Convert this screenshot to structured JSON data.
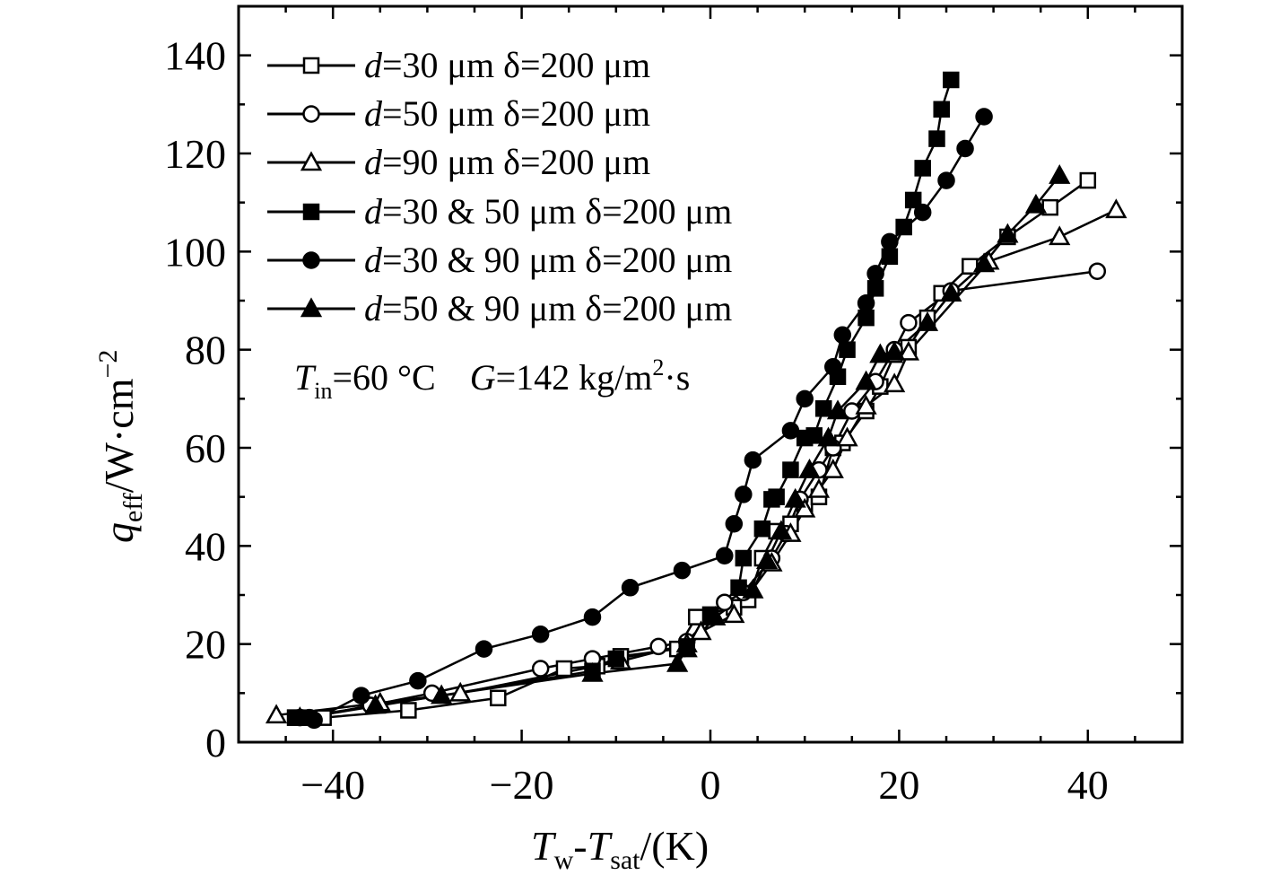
{
  "chart_data": {
    "type": "line",
    "x_label": {
      "symbol": "T",
      "sub1": "w",
      "dash": "-",
      "symbol2": "T",
      "sub2": "sat",
      "unit": "/(K)"
    },
    "y_label": {
      "symbol": "q",
      "sub": "eff",
      "unit": "/W·cm",
      "sup": "−2"
    },
    "xlim": [
      -50,
      50
    ],
    "ylim": [
      0,
      150
    ],
    "x_ticks": [
      -40,
      -20,
      0,
      20,
      40
    ],
    "x_tick_labels": [
      "−40",
      "−20",
      "0",
      "20",
      "40"
    ],
    "y_ticks": [
      0,
      20,
      40,
      60,
      80,
      100,
      120,
      140
    ],
    "y_tick_labels": [
      "0",
      "20",
      "40",
      "60",
      "80",
      "100",
      "120",
      "140"
    ],
    "legend_position": "top-left",
    "annotation": {
      "T": "T",
      "in": "in",
      "tval": "=60 °C",
      "G": "G",
      "gval": "=142 kg/m",
      "sq": "2",
      "tail": "·s"
    },
    "series": [
      {
        "label_italic": "d",
        "label_rest": "=30 μm δ=200 μm",
        "marker": "square",
        "filled": false,
        "x": [
          -44,
          -41,
          -32,
          -22.5,
          -15.5,
          -12,
          -9.5,
          -3.5,
          -1.5,
          2.5,
          4,
          5.5,
          7,
          8.5,
          10,
          11.5,
          13,
          14,
          16.5,
          18,
          19.5,
          21,
          23,
          24.5,
          27.5,
          31.5,
          36,
          40
        ],
        "y": [
          5,
          5,
          6.5,
          9,
          15,
          15.5,
          17.5,
          19,
          25.5,
          27.5,
          29,
          37.5,
          43,
          44.5,
          48.5,
          50,
          60,
          61,
          67.5,
          72.5,
          79,
          80.5,
          86.5,
          91.5,
          97,
          103,
          109,
          114.5
        ]
      },
      {
        "label_italic": "d",
        "label_rest": "=50 μm δ=200 μm",
        "marker": "circle",
        "filled": false,
        "x": [
          -43.5,
          -42.5,
          -36,
          -29.5,
          -18,
          -12.5,
          -5.5,
          -2.5,
          1.5,
          3.5,
          6.5,
          8,
          9.5,
          11.5,
          13,
          15,
          17.5,
          19.5,
          21,
          25.5,
          41
        ],
        "y": [
          5,
          5,
          7.5,
          10,
          15,
          17,
          19.5,
          20.5,
          28.5,
          30.5,
          37.5,
          42.5,
          49.5,
          55.5,
          60,
          67.5,
          73.5,
          80,
          85.5,
          92,
          96
        ]
      },
      {
        "label_italic": "d",
        "label_rest": "=90 μm δ=200 μm",
        "marker": "triangle",
        "filled": false,
        "x": [
          -46,
          -35,
          -26.5,
          -9.5,
          -2.5,
          -1,
          2.5,
          6.5,
          8.5,
          10,
          11.5,
          13,
          14.5,
          16.5,
          19.5,
          21,
          29.5,
          37,
          43
        ],
        "y": [
          5.5,
          8,
          10,
          16.5,
          20,
          22.5,
          26,
          36.5,
          42.5,
          47.5,
          51.5,
          55.5,
          62,
          68.5,
          73,
          79.5,
          98,
          103,
          108.5
        ]
      },
      {
        "label_italic": "d",
        "label_rest": "=30 & 50 μm δ=200 μm",
        "marker": "square",
        "filled": true,
        "x": [
          -44,
          -43,
          -12.5,
          -10,
          -2.5,
          0,
          3,
          3.5,
          5.5,
          6.5,
          7,
          8.5,
          10,
          11,
          12,
          13.5,
          14.5,
          16.5,
          17.5,
          19,
          20.5,
          21.5,
          22.5,
          24,
          24.5,
          25.5
        ],
        "y": [
          5,
          5,
          14.5,
          17,
          19.5,
          26,
          31.5,
          37.5,
          43.5,
          49.5,
          50,
          55.5,
          62,
          62.5,
          68,
          74.5,
          80,
          86.5,
          92.5,
          99,
          105,
          110.5,
          117,
          123,
          129,
          135
        ]
      },
      {
        "label_italic": "d",
        "label_rest": "=30 & 90 μm δ=200 μm",
        "marker": "circle",
        "filled": true,
        "x": [
          -42,
          -37,
          -31,
          -24,
          -18,
          -12.5,
          -8.5,
          -3,
          1.5,
          2.5,
          3.5,
          4.5,
          8.5,
          10,
          13,
          14,
          16.5,
          17.5,
          19,
          22.5,
          25,
          27,
          29
        ],
        "y": [
          4.5,
          9.5,
          12.5,
          19,
          22,
          25.5,
          31.5,
          35,
          38,
          44.5,
          50.5,
          57.5,
          63.5,
          70,
          76.5,
          83,
          89.5,
          95.5,
          102,
          108,
          114.5,
          121,
          127.5
        ]
      },
      {
        "label_italic": "d",
        "label_rest": "=50 & 90 μm δ=200 μm",
        "marker": "triangle",
        "filled": true,
        "x": [
          -43.5,
          -35.5,
          -28.5,
          -12.5,
          -3.5,
          -2.5,
          0.5,
          4.5,
          6,
          7.5,
          9,
          10.5,
          12.5,
          13.5,
          16.5,
          18,
          19.5,
          23,
          25.5,
          29,
          31.5,
          34.5,
          37
        ],
        "y": [
          5,
          7.5,
          9.5,
          14,
          16,
          19,
          25.5,
          31,
          37,
          43,
          49.5,
          55.5,
          62,
          67.5,
          73.5,
          79,
          79.5,
          85.5,
          91.5,
          97.5,
          103.5,
          109.5,
          115.5
        ]
      }
    ]
  }
}
